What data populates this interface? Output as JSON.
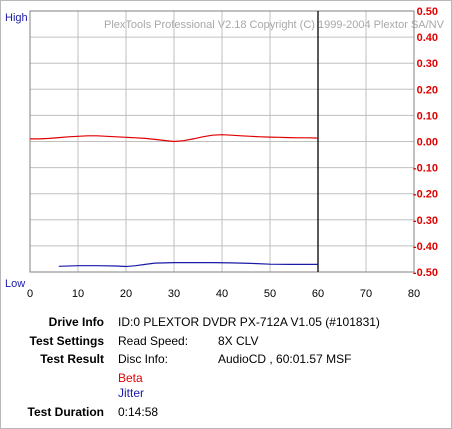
{
  "chart_data": {
    "type": "line",
    "watermark": "PlexTools Professional V2.18 Copyright (C) 1999-2004 Plextor SA/NV",
    "left_axis_top_label": "High",
    "left_axis_bottom_label": "Low",
    "xlim": [
      0,
      80
    ],
    "x_ticks": [
      "0",
      "10",
      "20",
      "30",
      "40",
      "50",
      "60",
      "70",
      "80"
    ],
    "y_right_lim": [
      -0.5,
      0.5
    ],
    "y_right_ticks": [
      "0.50",
      "0.40",
      "0.30",
      "0.20",
      "0.10",
      "0.00",
      "-0.10",
      "-0.20",
      "-0.30",
      "-0.40",
      "-0.50"
    ],
    "grid": true,
    "end_marker_x": 60,
    "colors": {
      "beta": "#e00000",
      "jitter": "#1a1aa8",
      "right_axis_text": "#e00000",
      "left_axis_text": "#1a1aa8",
      "grid": "#c0c0c0",
      "watermark": "#a8a8a8"
    },
    "series": [
      {
        "name": "Beta",
        "color": "#e00000",
        "x": [
          0,
          2,
          4,
          6,
          8,
          10,
          12,
          14,
          16,
          18,
          20,
          22,
          24,
          26,
          28,
          30,
          32,
          34,
          36,
          38,
          40,
          42,
          44,
          46,
          48,
          50,
          52,
          54,
          56,
          58,
          60
        ],
        "y": [
          0.01,
          0.01,
          0.012,
          0.015,
          0.018,
          0.02,
          0.022,
          0.022,
          0.02,
          0.018,
          0.016,
          0.014,
          0.012,
          0.008,
          0.004,
          0.0,
          0.003,
          0.01,
          0.018,
          0.024,
          0.026,
          0.024,
          0.022,
          0.02,
          0.018,
          0.017,
          0.016,
          0.015,
          0.014,
          0.014,
          0.013
        ]
      },
      {
        "name": "Jitter",
        "color": "#1a1aa8",
        "x": [
          6,
          10,
          14,
          18,
          20,
          22,
          24,
          26,
          28,
          30,
          34,
          38,
          42,
          46,
          50,
          54,
          58,
          60
        ],
        "y": [
          -0.478,
          -0.476,
          -0.476,
          -0.477,
          -0.479,
          -0.476,
          -0.471,
          -0.466,
          -0.465,
          -0.464,
          -0.464,
          -0.464,
          -0.465,
          -0.467,
          -0.47,
          -0.471,
          -0.471,
          -0.471
        ]
      }
    ]
  },
  "info": {
    "drive_info_label": "Drive Info",
    "drive_info_value": "ID:0 PLEXTOR DVDR PX-712A V1.05 (#101831)",
    "test_settings_label": "Test Settings",
    "read_speed_label": "Read Speed:",
    "read_speed_value": "8X CLV",
    "test_result_label": "Test Result",
    "disc_info_label": "Disc Info:",
    "disc_info_value": "AudioCD , 60:01.57 MSF",
    "beta_legend": "Beta",
    "jitter_legend": "Jitter",
    "test_duration_label": "Test Duration",
    "test_duration_value": "0:14:58"
  }
}
